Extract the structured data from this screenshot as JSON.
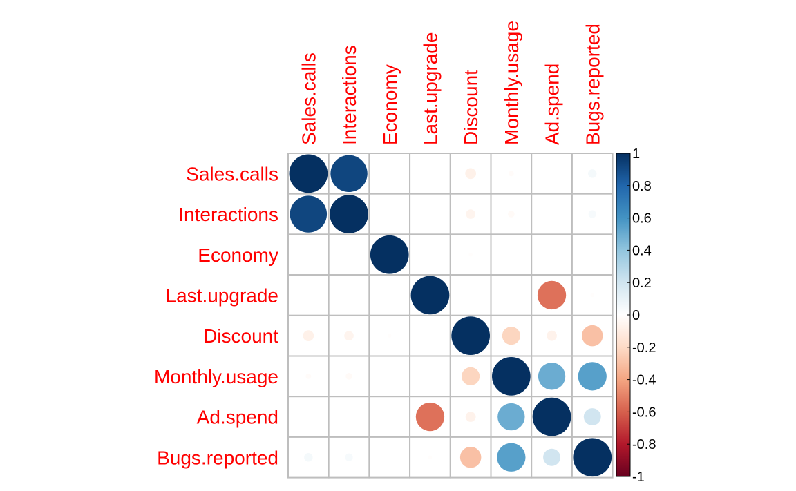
{
  "chart_data": {
    "type": "heatmap",
    "variables": [
      "Sales.calls",
      "Interactions",
      "Economy",
      "Last.upgrade",
      "Discount",
      "Monthly.usage",
      "Ad.spend",
      "Bugs.reported"
    ],
    "matrix": [
      [
        1.0,
        0.92,
        0.0,
        0.0,
        -0.08,
        -0.02,
        0.0,
        0.05
      ],
      [
        0.92,
        1.0,
        0.0,
        0.0,
        -0.06,
        -0.03,
        0.0,
        0.04
      ],
      [
        0.0,
        0.0,
        1.0,
        0.0,
        -0.01,
        0.0,
        0.0,
        0.0
      ],
      [
        0.0,
        0.0,
        0.0,
        1.0,
        0.0,
        0.0,
        -0.55,
        -0.01
      ],
      [
        -0.08,
        -0.06,
        -0.01,
        0.0,
        1.0,
        -0.22,
        -0.07,
        -0.3
      ],
      [
        -0.02,
        -0.03,
        0.0,
        0.0,
        -0.22,
        1.0,
        0.5,
        0.55
      ],
      [
        0.0,
        0.0,
        0.0,
        -0.55,
        -0.07,
        0.5,
        1.0,
        0.2
      ],
      [
        0.05,
        0.04,
        0.0,
        -0.01,
        -0.3,
        0.55,
        0.2,
        1.0
      ]
    ],
    "colorbar": {
      "ticks": [
        "1",
        "0.8",
        "0.6",
        "0.4",
        "0.2",
        "0",
        "-0.2",
        "-0.4",
        "-0.6",
        "-0.8",
        "-1"
      ],
      "range": [
        -1,
        1
      ],
      "colors": [
        "#67001F",
        "#B2182B",
        "#D6604D",
        "#F4A582",
        "#FDDBC7",
        "#FFFFFF",
        "#D1E5F0",
        "#92C5DE",
        "#4393C3",
        "#2166AC",
        "#053061"
      ]
    },
    "label_color": "#ff0000",
    "grid_color": "#bebebe",
    "legend_position": "right"
  }
}
